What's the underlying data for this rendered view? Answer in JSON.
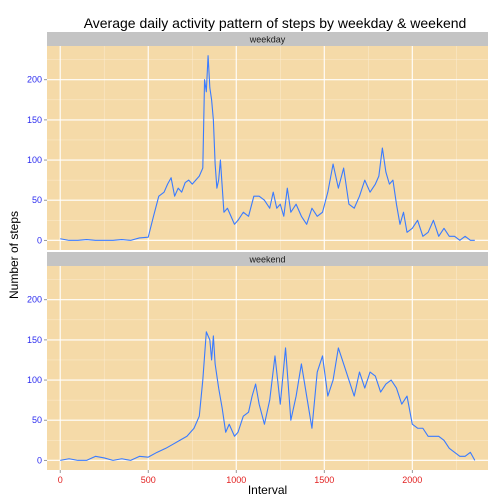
{
  "chart_data": {
    "type": "line",
    "title": "Average daily activity pattern of steps by weekday & weekend",
    "xlabel": "Interval",
    "ylabel": "Number of steps",
    "xlim": [
      -75,
      2430
    ],
    "ylim": [
      -12,
      242
    ],
    "x_ticks": [
      0,
      500,
      1000,
      1500,
      2000
    ],
    "x_tick_labels": [
      "0",
      "500",
      "1000",
      "1500",
      "2000"
    ],
    "y_ticks": [
      0,
      50,
      100,
      150,
      200
    ],
    "y_tick_labels": [
      "0",
      "50",
      "100",
      "150",
      "200"
    ],
    "grid": true,
    "colors": {
      "panel_bg": "#f5daa8",
      "strip_bg": "#c4c4c4",
      "line": "#3a7bff",
      "grid_major": "#ffffff",
      "grid_minor": "#fbecd0",
      "y_tick_text": "#2a2af0",
      "x_tick_text": "#e22020"
    },
    "panels": [
      {
        "name": "weekday",
        "x": [
          0,
          50,
          100,
          150,
          200,
          250,
          300,
          350,
          400,
          450,
          500,
          530,
          560,
          590,
          610,
          630,
          650,
          670,
          690,
          710,
          730,
          750,
          770,
          790,
          810,
          820,
          830,
          840,
          850,
          860,
          870,
          880,
          890,
          900,
          910,
          930,
          950,
          970,
          990,
          1010,
          1040,
          1070,
          1100,
          1130,
          1160,
          1190,
          1210,
          1230,
          1250,
          1270,
          1290,
          1310,
          1340,
          1370,
          1400,
          1430,
          1460,
          1490,
          1520,
          1550,
          1580,
          1610,
          1640,
          1670,
          1700,
          1730,
          1760,
          1790,
          1810,
          1830,
          1850,
          1870,
          1890,
          1910,
          1930,
          1950,
          1970,
          2000,
          2030,
          2060,
          2090,
          2120,
          2150,
          2180,
          2210,
          2240,
          2270,
          2300,
          2330,
          2355
        ],
        "y": [
          2,
          0,
          0,
          1,
          0,
          0,
          0,
          1,
          0,
          3,
          4,
          30,
          55,
          60,
          70,
          78,
          55,
          65,
          60,
          72,
          75,
          70,
          75,
          80,
          90,
          200,
          185,
          230,
          190,
          175,
          150,
          95,
          65,
          75,
          100,
          35,
          40,
          30,
          20,
          25,
          35,
          30,
          55,
          55,
          50,
          40,
          60,
          40,
          45,
          30,
          65,
          35,
          45,
          30,
          20,
          40,
          30,
          35,
          60,
          95,
          65,
          90,
          45,
          40,
          55,
          75,
          60,
          70,
          80,
          115,
          85,
          70,
          75,
          45,
          20,
          35,
          10,
          15,
          25,
          5,
          10,
          25,
          5,
          15,
          5,
          5,
          0,
          5,
          0,
          0
        ]
      },
      {
        "name": "weekend",
        "x": [
          0,
          50,
          100,
          150,
          200,
          250,
          300,
          350,
          400,
          450,
          500,
          550,
          600,
          640,
          680,
          720,
          760,
          790,
          810,
          830,
          850,
          860,
          870,
          880,
          900,
          920,
          940,
          960,
          990,
          1010,
          1040,
          1070,
          1090,
          1110,
          1130,
          1160,
          1190,
          1220,
          1250,
          1280,
          1310,
          1340,
          1370,
          1400,
          1430,
          1460,
          1490,
          1520,
          1550,
          1580,
          1610,
          1640,
          1670,
          1700,
          1730,
          1760,
          1790,
          1820,
          1850,
          1880,
          1910,
          1940,
          1970,
          2000,
          2030,
          2060,
          2090,
          2120,
          2150,
          2180,
          2210,
          2240,
          2270,
          2300,
          2330,
          2355
        ],
        "y": [
          0,
          2,
          0,
          0,
          5,
          3,
          0,
          2,
          0,
          5,
          4,
          10,
          15,
          20,
          25,
          30,
          40,
          55,
          100,
          160,
          150,
          125,
          155,
          120,
          90,
          65,
          35,
          45,
          30,
          35,
          55,
          60,
          80,
          95,
          70,
          45,
          75,
          130,
          70,
          140,
          50,
          80,
          120,
          80,
          40,
          110,
          130,
          80,
          100,
          140,
          120,
          100,
          80,
          110,
          90,
          110,
          105,
          85,
          95,
          100,
          90,
          70,
          80,
          45,
          40,
          40,
          30,
          30,
          30,
          25,
          15,
          10,
          5,
          5,
          10,
          0
        ]
      }
    ]
  }
}
